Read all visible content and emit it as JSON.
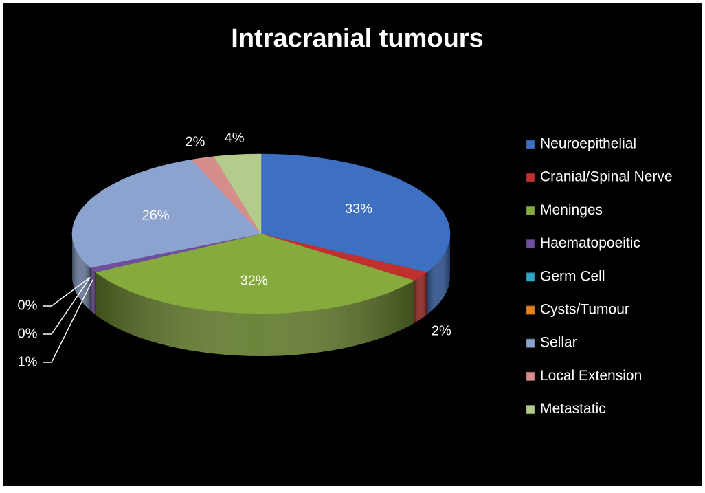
{
  "chart_data": {
    "type": "pie",
    "title": "Intracranial tumours",
    "categories": [
      "Neuroepithelial",
      "Cranial/Spinal Nerve",
      "Meninges",
      "Haematopoeitic",
      "Germ Cell",
      "Cysts/Tumour",
      "Sellar",
      "Local Extension",
      "Metastatic"
    ],
    "values": [
      33,
      2,
      32,
      1,
      0,
      0,
      26,
      2,
      4
    ],
    "value_labels": [
      "33%",
      "2%",
      "32%",
      "1%",
      "0%",
      "0%",
      "26%",
      "2%",
      "4%"
    ],
    "colors": [
      "#3d6fc2",
      "#c0302f",
      "#87aa3c",
      "#6f4f9c",
      "#2fa6c4",
      "#e6821e",
      "#8ca2cf",
      "#d58e8c",
      "#b5cb8c"
    ],
    "legend": "right"
  }
}
